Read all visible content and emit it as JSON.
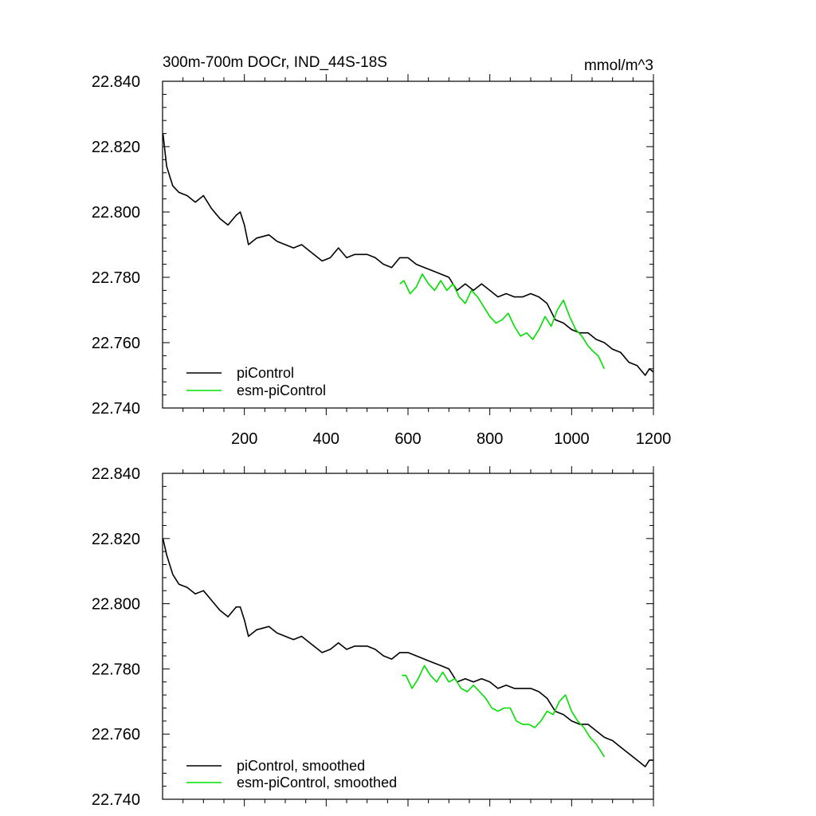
{
  "chart_data": [
    {
      "type": "line",
      "title": "300m-700m DOCr, IND_44S-18S",
      "units": "mmol/m^3",
      "xlim": [
        0,
        1200
      ],
      "ylim": [
        22.74,
        22.84
      ],
      "xticks": [
        "200",
        "400",
        "600",
        "800",
        "1000",
        "1200"
      ],
      "yticks": [
        "22.840",
        "22.820",
        "22.800",
        "22.780",
        "22.760",
        "22.740"
      ],
      "legend_position": "bottom-left",
      "series": [
        {
          "name": "piControl",
          "color": "#000000",
          "points": [
            [
              1,
              22.824
            ],
            [
              10,
              22.814
            ],
            [
              25,
              22.808
            ],
            [
              40,
              22.806
            ],
            [
              60,
              22.805
            ],
            [
              80,
              22.803
            ],
            [
              100,
              22.805
            ],
            [
              120,
              22.801
            ],
            [
              140,
              22.798
            ],
            [
              160,
              22.796
            ],
            [
              180,
              22.799
            ],
            [
              190,
              22.8
            ],
            [
              200,
              22.796
            ],
            [
              210,
              22.79
            ],
            [
              230,
              22.792
            ],
            [
              260,
              22.793
            ],
            [
              280,
              22.791
            ],
            [
              300,
              22.79
            ],
            [
              320,
              22.789
            ],
            [
              340,
              22.79
            ],
            [
              360,
              22.788
            ],
            [
              390,
              22.785
            ],
            [
              410,
              22.786
            ],
            [
              430,
              22.789
            ],
            [
              450,
              22.786
            ],
            [
              470,
              22.787
            ],
            [
              500,
              22.787
            ],
            [
              520,
              22.786
            ],
            [
              540,
              22.784
            ],
            [
              560,
              22.783
            ],
            [
              580,
              22.786
            ],
            [
              600,
              22.786
            ],
            [
              620,
              22.784
            ],
            [
              640,
              22.783
            ],
            [
              660,
              22.782
            ],
            [
              680,
              22.781
            ],
            [
              700,
              22.78
            ],
            [
              720,
              22.776
            ],
            [
              740,
              22.778
            ],
            [
              760,
              22.776
            ],
            [
              780,
              22.778
            ],
            [
              800,
              22.776
            ],
            [
              820,
              22.774
            ],
            [
              840,
              22.775
            ],
            [
              860,
              22.774
            ],
            [
              880,
              22.774
            ],
            [
              900,
              22.775
            ],
            [
              920,
              22.774
            ],
            [
              940,
              22.772
            ],
            [
              960,
              22.767
            ],
            [
              980,
              22.766
            ],
            [
              1000,
              22.764
            ],
            [
              1020,
              22.763
            ],
            [
              1040,
              22.763
            ],
            [
              1060,
              22.761
            ],
            [
              1080,
              22.76
            ],
            [
              1100,
              22.758
            ],
            [
              1120,
              22.757
            ],
            [
              1140,
              22.754
            ],
            [
              1160,
              22.753
            ],
            [
              1180,
              22.75
            ],
            [
              1190,
              22.752
            ],
            [
              1200,
              22.751
            ]
          ]
        },
        {
          "name": "esm-piControl",
          "color": "#00e000",
          "points": [
            [
              580,
              22.778
            ],
            [
              590,
              22.779
            ],
            [
              605,
              22.775
            ],
            [
              620,
              22.777
            ],
            [
              635,
              22.781
            ],
            [
              650,
              22.778
            ],
            [
              665,
              22.776
            ],
            [
              680,
              22.779
            ],
            [
              695,
              22.776
            ],
            [
              710,
              22.778
            ],
            [
              725,
              22.774
            ],
            [
              740,
              22.772
            ],
            [
              755,
              22.776
            ],
            [
              770,
              22.774
            ],
            [
              785,
              22.771
            ],
            [
              800,
              22.768
            ],
            [
              815,
              22.766
            ],
            [
              830,
              22.767
            ],
            [
              845,
              22.769
            ],
            [
              860,
              22.765
            ],
            [
              875,
              22.762
            ],
            [
              890,
              22.763
            ],
            [
              905,
              22.761
            ],
            [
              920,
              22.764
            ],
            [
              935,
              22.768
            ],
            [
              950,
              22.765
            ],
            [
              965,
              22.77
            ],
            [
              980,
              22.773
            ],
            [
              995,
              22.768
            ],
            [
              1010,
              22.764
            ],
            [
              1025,
              22.762
            ],
            [
              1040,
              22.759
            ],
            [
              1055,
              22.757
            ],
            [
              1065,
              22.756
            ],
            [
              1080,
              22.752
            ]
          ]
        }
      ]
    },
    {
      "type": "line",
      "title": "",
      "units": "",
      "xlim": [
        0,
        1200
      ],
      "ylim": [
        22.74,
        22.84
      ],
      "yticks": [
        "22.840",
        "22.820",
        "22.800",
        "22.780",
        "22.760",
        "22.740"
      ],
      "legend_position": "bottom-left",
      "series": [
        {
          "name": "piControl, smoothed",
          "color": "#000000",
          "points": [
            [
              1,
              22.82
            ],
            [
              10,
              22.815
            ],
            [
              25,
              22.809
            ],
            [
              40,
              22.806
            ],
            [
              60,
              22.805
            ],
            [
              80,
              22.803
            ],
            [
              100,
              22.804
            ],
            [
              120,
              22.801
            ],
            [
              140,
              22.798
            ],
            [
              160,
              22.796
            ],
            [
              180,
              22.799
            ],
            [
              190,
              22.799
            ],
            [
              200,
              22.795
            ],
            [
              210,
              22.79
            ],
            [
              230,
              22.792
            ],
            [
              260,
              22.793
            ],
            [
              280,
              22.791
            ],
            [
              300,
              22.79
            ],
            [
              320,
              22.789
            ],
            [
              340,
              22.79
            ],
            [
              360,
              22.788
            ],
            [
              390,
              22.785
            ],
            [
              410,
              22.786
            ],
            [
              430,
              22.788
            ],
            [
              450,
              22.786
            ],
            [
              470,
              22.787
            ],
            [
              500,
              22.787
            ],
            [
              520,
              22.786
            ],
            [
              540,
              22.784
            ],
            [
              560,
              22.783
            ],
            [
              580,
              22.785
            ],
            [
              600,
              22.785
            ],
            [
              620,
              22.784
            ],
            [
              640,
              22.783
            ],
            [
              660,
              22.782
            ],
            [
              680,
              22.781
            ],
            [
              700,
              22.78
            ],
            [
              720,
              22.776
            ],
            [
              740,
              22.777
            ],
            [
              760,
              22.776
            ],
            [
              780,
              22.777
            ],
            [
              800,
              22.776
            ],
            [
              820,
              22.774
            ],
            [
              840,
              22.775
            ],
            [
              860,
              22.774
            ],
            [
              880,
              22.774
            ],
            [
              900,
              22.774
            ],
            [
              920,
              22.773
            ],
            [
              940,
              22.771
            ],
            [
              960,
              22.767
            ],
            [
              980,
              22.766
            ],
            [
              1000,
              22.764
            ],
            [
              1020,
              22.763
            ],
            [
              1040,
              22.763
            ],
            [
              1060,
              22.761
            ],
            [
              1080,
              22.759
            ],
            [
              1100,
              22.758
            ],
            [
              1120,
              22.756
            ],
            [
              1140,
              22.754
            ],
            [
              1160,
              22.752
            ],
            [
              1180,
              22.75
            ],
            [
              1190,
              22.752
            ],
            [
              1200,
              22.752
            ]
          ]
        },
        {
          "name": "esm-piControl, smoothed",
          "color": "#00e000",
          "points": [
            [
              585,
              22.778
            ],
            [
              595,
              22.778
            ],
            [
              610,
              22.774
            ],
            [
              625,
              22.777
            ],
            [
              640,
              22.781
            ],
            [
              655,
              22.778
            ],
            [
              670,
              22.776
            ],
            [
              685,
              22.779
            ],
            [
              700,
              22.776
            ],
            [
              715,
              22.777
            ],
            [
              730,
              22.774
            ],
            [
              745,
              22.773
            ],
            [
              760,
              22.775
            ],
            [
              775,
              22.773
            ],
            [
              790,
              22.771
            ],
            [
              805,
              22.768
            ],
            [
              820,
              22.767
            ],
            [
              835,
              22.768
            ],
            [
              850,
              22.768
            ],
            [
              865,
              22.764
            ],
            [
              880,
              22.763
            ],
            [
              895,
              22.763
            ],
            [
              910,
              22.762
            ],
            [
              925,
              22.764
            ],
            [
              940,
              22.767
            ],
            [
              955,
              22.766
            ],
            [
              970,
              22.77
            ],
            [
              985,
              22.772
            ],
            [
              1000,
              22.767
            ],
            [
              1015,
              22.764
            ],
            [
              1030,
              22.762
            ],
            [
              1045,
              22.759
            ],
            [
              1060,
              22.757
            ],
            [
              1070,
              22.755
            ],
            [
              1080,
              22.753
            ]
          ]
        }
      ]
    }
  ]
}
